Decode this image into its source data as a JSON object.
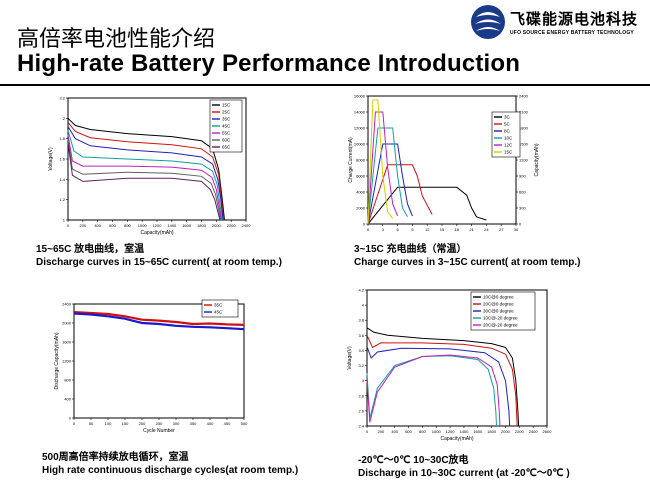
{
  "header": {
    "title_cn": "高倍率电池性能介绍",
    "title_en": "High-rate Battery Performance Introduction",
    "logo_name": "飞碟能源电池科技",
    "logo_sub": "UFO SOURCE ENERGY BATTERY TECHNOLOGY"
  },
  "captions": {
    "c1_line1": "15~65C 放电曲线，室温",
    "c1_line2": "Discharge curves in 15~65C current( at room temp.)",
    "c2_line1": "3~15C 充电曲线（常温）",
    "c2_line2": "Charge curves in 3~15C current( at room temp.)",
    "c3_line1": "500周高倍率持续放电循环，室温",
    "c3_line2": "High rate continuous discharge cycles(at room temp.)",
    "c4_line1": "-20℃～0℃ 10~30C放电",
    "c4_line2": "Discharge  in 10~30C current (at -20℃～0℃ )"
  },
  "chart_data": [
    {
      "id": "discharge-15-65C",
      "type": "line",
      "xlabel": "Capacity(mAh)",
      "ylabel": "Voltage(V)",
      "xlim": [
        0,
        2400
      ],
      "ylim": [
        1.0,
        2.2
      ],
      "xticks": [
        0,
        200,
        400,
        600,
        800,
        1000,
        1200,
        1400,
        1600,
        1800,
        2000,
        2200,
        2400
      ],
      "yticks": [
        1.0,
        1.2,
        1.4,
        1.6,
        1.8,
        2.0,
        2.2
      ],
      "legend_position": "top-right",
      "series": [
        {
          "name": "15C",
          "color": "#000000",
          "points": [
            [
              0,
              2.0
            ],
            [
              100,
              1.93
            ],
            [
              300,
              1.89
            ],
            [
              800,
              1.85
            ],
            [
              1400,
              1.82
            ],
            [
              1800,
              1.78
            ],
            [
              1950,
              1.7
            ],
            [
              2030,
              1.5
            ],
            [
              2080,
              1.2
            ],
            [
              2110,
              1.0
            ]
          ]
        },
        {
          "name": "25C",
          "color": "#d01010",
          "points": [
            [
              0,
              1.96
            ],
            [
              100,
              1.87
            ],
            [
              300,
              1.81
            ],
            [
              800,
              1.77
            ],
            [
              1400,
              1.74
            ],
            [
              1800,
              1.7
            ],
            [
              1950,
              1.62
            ],
            [
              2030,
              1.45
            ],
            [
              2070,
              1.2
            ],
            [
              2100,
              1.0
            ]
          ]
        },
        {
          "name": "35C",
          "color": "#2020c0",
          "points": [
            [
              0,
              1.92
            ],
            [
              100,
              1.8
            ],
            [
              300,
              1.73
            ],
            [
              800,
              1.69
            ],
            [
              1400,
              1.66
            ],
            [
              1800,
              1.62
            ],
            [
              1950,
              1.55
            ],
            [
              2020,
              1.4
            ],
            [
              2060,
              1.2
            ],
            [
              2090,
              1.0
            ]
          ]
        },
        {
          "name": "45C",
          "color": "#10a0a0",
          "points": [
            [
              0,
              1.88
            ],
            [
              80,
              1.68
            ],
            [
              200,
              1.62
            ],
            [
              800,
              1.6
            ],
            [
              1400,
              1.58
            ],
            [
              1800,
              1.55
            ],
            [
              1950,
              1.48
            ],
            [
              2010,
              1.35
            ],
            [
              2050,
              1.15
            ],
            [
              2080,
              1.0
            ]
          ]
        },
        {
          "name": "55C",
          "color": "#c020c0",
          "points": [
            [
              0,
              1.84
            ],
            [
              60,
              1.58
            ],
            [
              200,
              1.53
            ],
            [
              800,
              1.53
            ],
            [
              1400,
              1.52
            ],
            [
              1800,
              1.49
            ],
            [
              1940,
              1.42
            ],
            [
              2000,
              1.3
            ],
            [
              2040,
              1.12
            ],
            [
              2070,
              1.0
            ]
          ]
        },
        {
          "name": "60C",
          "color": "#606060",
          "points": [
            [
              0,
              1.8
            ],
            [
              60,
              1.5
            ],
            [
              200,
              1.45
            ],
            [
              800,
              1.47
            ],
            [
              1400,
              1.46
            ],
            [
              1800,
              1.43
            ],
            [
              1930,
              1.36
            ],
            [
              1990,
              1.25
            ],
            [
              2030,
              1.1
            ],
            [
              2060,
              1.0
            ]
          ]
        },
        {
          "name": "65C",
          "color": "#602060",
          "points": [
            [
              0,
              1.76
            ],
            [
              60,
              1.44
            ],
            [
              200,
              1.38
            ],
            [
              800,
              1.41
            ],
            [
              1400,
              1.41
            ],
            [
              1800,
              1.38
            ],
            [
              1920,
              1.3
            ],
            [
              1980,
              1.2
            ],
            [
              2020,
              1.08
            ],
            [
              2050,
              1.0
            ]
          ]
        }
      ]
    },
    {
      "id": "charge-3-15C",
      "type": "line",
      "xlabel": "",
      "ylabel": "Charge Current(mA)",
      "ylabel_right": "Capacity(mAh)",
      "xlim": [
        0,
        30
      ],
      "ylim": [
        0,
        16000
      ],
      "ylim_right": [
        0,
        2400
      ],
      "xticks": [
        0,
        3,
        6,
        9,
        12,
        15,
        18,
        21,
        24,
        27,
        30
      ],
      "yticks": [
        0,
        2000,
        4000,
        6000,
        8000,
        10000,
        12000,
        14000,
        16000
      ],
      "yticks_right": [
        0,
        300,
        600,
        900,
        1200,
        1500,
        1800,
        2100,
        2400
      ],
      "legend_position": "right",
      "series": [
        {
          "name": "3C",
          "color": "#000000",
          "points": [
            [
              0,
              0
            ],
            [
              6,
              4600
            ],
            [
              9,
              4600
            ],
            [
              18,
              4600
            ],
            [
              20,
              3600
            ],
            [
              21,
              2000
            ],
            [
              22,
              900
            ],
            [
              24,
              500
            ]
          ]
        },
        {
          "name": "5C",
          "color": "#d01010",
          "points": [
            [
              0,
              0
            ],
            [
              4,
              7400
            ],
            [
              9,
              7400
            ],
            [
              10,
              6000
            ],
            [
              11,
              3500
            ],
            [
              13,
              1200
            ]
          ]
        },
        {
          "name": "8C",
          "color": "#2020c0",
          "points": [
            [
              0,
              0
            ],
            [
              3,
              10000
            ],
            [
              6,
              10000
            ],
            [
              7,
              6000
            ],
            [
              8,
              2500
            ],
            [
              9,
              1000
            ]
          ]
        },
        {
          "name": "10C",
          "color": "#10a0a0",
          "points": [
            [
              0,
              0
            ],
            [
              2,
              12000
            ],
            [
              5,
              12000
            ],
            [
              6,
              6000
            ],
            [
              7,
              2000
            ],
            [
              8,
              900
            ]
          ]
        },
        {
          "name": "12C",
          "color": "#c020c0",
          "points": [
            [
              0,
              0
            ],
            [
              1.5,
              14000
            ],
            [
              3,
              14000
            ],
            [
              4,
              7000
            ],
            [
              5,
              2500
            ],
            [
              6,
              1000
            ]
          ]
        },
        {
          "name": "15C",
          "color": "#d0d000",
          "points": [
            [
              0,
              0
            ],
            [
              1,
              15500
            ],
            [
              2,
              15500
            ],
            [
              3,
              6000
            ],
            [
              4,
              1500
            ],
            [
              5,
              700
            ]
          ]
        }
      ]
    },
    {
      "id": "cycle-500",
      "type": "line",
      "xlabel": "Cycle Number",
      "ylabel": "Discharge Capacity(mAh)",
      "xlim": [
        0,
        500
      ],
      "ylim": [
        0,
        2400
      ],
      "xticks": [
        0,
        50,
        100,
        150,
        200,
        250,
        300,
        350,
        400,
        450,
        500
      ],
      "yticks": [
        0,
        400,
        800,
        1200,
        1600,
        2000,
        2400
      ],
      "legend_position": "top-right",
      "series": [
        {
          "name": "35C",
          "color": "#d01010",
          "points": [
            [
              0,
              2230
            ],
            [
              50,
              2210
            ],
            [
              100,
              2190
            ],
            [
              150,
              2140
            ],
            [
              200,
              2070
            ],
            [
              250,
              2050
            ],
            [
              300,
              2020
            ],
            [
              350,
              1980
            ],
            [
              400,
              1990
            ],
            [
              450,
              1970
            ],
            [
              500,
              1960
            ]
          ]
        },
        {
          "name": "45C",
          "color": "#1a1acc",
          "points": [
            [
              0,
              2200
            ],
            [
              50,
              2180
            ],
            [
              100,
              2140
            ],
            [
              150,
              2090
            ],
            [
              200,
              2000
            ],
            [
              250,
              1980
            ],
            [
              300,
              1940
            ],
            [
              350,
              1920
            ],
            [
              400,
              1910
            ],
            [
              450,
              1890
            ],
            [
              500,
              1870
            ]
          ]
        }
      ]
    },
    {
      "id": "low-temp",
      "type": "line",
      "xlabel": "Capacity(mAh)",
      "ylabel": "Voltage(V)",
      "xlim": [
        0,
        2600
      ],
      "ylim": [
        2.4,
        4.2
      ],
      "xticks": [
        0,
        200,
        400,
        600,
        800,
        1000,
        1200,
        1400,
        1600,
        1800,
        2000,
        2200,
        2400,
        2600
      ],
      "yticks": [
        2.4,
        2.6,
        2.8,
        3.0,
        3.2,
        3.4,
        3.6,
        3.8,
        4.0,
        4.2
      ],
      "legend_position": "top-right",
      "series": [
        {
          "name": "10C@0 degree",
          "color": "#000000",
          "points": [
            [
              0,
              3.7
            ],
            [
              100,
              3.64
            ],
            [
              300,
              3.6
            ],
            [
              800,
              3.56
            ],
            [
              1400,
              3.53
            ],
            [
              1800,
              3.49
            ],
            [
              2000,
              3.44
            ],
            [
              2100,
              3.3
            ],
            [
              2150,
              3.0
            ],
            [
              2180,
              2.6
            ],
            [
              2190,
              2.4
            ]
          ]
        },
        {
          "name": "20C@0 degree",
          "color": "#d01010",
          "points": [
            [
              0,
              3.6
            ],
            [
              80,
              3.44
            ],
            [
              200,
              3.5
            ],
            [
              800,
              3.5
            ],
            [
              1400,
              3.48
            ],
            [
              1800,
              3.43
            ],
            [
              2000,
              3.35
            ],
            [
              2100,
              3.15
            ],
            [
              2150,
              2.8
            ],
            [
              2170,
              2.4
            ]
          ]
        },
        {
          "name": "30C@0 degree",
          "color": "#2020c0",
          "points": [
            [
              0,
              3.45
            ],
            [
              60,
              3.3
            ],
            [
              150,
              3.38
            ],
            [
              500,
              3.43
            ],
            [
              1200,
              3.42
            ],
            [
              1700,
              3.37
            ],
            [
              1900,
              3.25
            ],
            [
              2000,
              3.0
            ],
            [
              2050,
              2.6
            ],
            [
              2060,
              2.4
            ]
          ]
        },
        {
          "name": "10C@-20 degree",
          "color": "#10a0a0",
          "points": [
            [
              0,
              3.1
            ],
            [
              40,
              2.5
            ],
            [
              150,
              2.9
            ],
            [
              400,
              3.2
            ],
            [
              800,
              3.32
            ],
            [
              1200,
              3.33
            ],
            [
              1600,
              3.28
            ],
            [
              1750,
              3.15
            ],
            [
              1830,
              2.9
            ],
            [
              1860,
              2.6
            ],
            [
              1870,
              2.4
            ]
          ]
        },
        {
          "name": "20C@-20 degree",
          "color": "#c020c0",
          "points": [
            [
              0,
              3.0
            ],
            [
              40,
              2.45
            ],
            [
              150,
              2.85
            ],
            [
              400,
              3.18
            ],
            [
              800,
              3.32
            ],
            [
              1200,
              3.34
            ],
            [
              1600,
              3.3
            ],
            [
              1800,
              3.18
            ],
            [
              1880,
              2.95
            ],
            [
              1910,
              2.6
            ],
            [
              1920,
              2.4
            ]
          ]
        }
      ]
    }
  ]
}
